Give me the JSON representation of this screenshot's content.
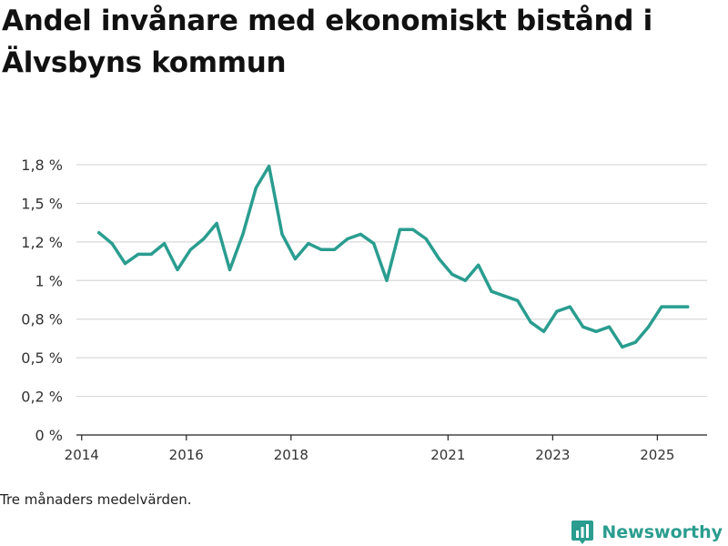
{
  "chart_data": {
    "type": "line",
    "title": "Andel invånare med ekonomiskt bistånd i Älvsbyns kommun",
    "xlabel": "",
    "ylabel": "",
    "ylim": [
      0,
      1.75
    ],
    "xlim": [
      2013.9,
      2025.95
    ],
    "y_ticks": [
      {
        "value": 0,
        "label": "0 %"
      },
      {
        "value": 0.25,
        "label": "0,2 %"
      },
      {
        "value": 0.5,
        "label": "0,5 %"
      },
      {
        "value": 0.75,
        "label": "0,8 %"
      },
      {
        "value": 1.0,
        "label": "1 %"
      },
      {
        "value": 1.25,
        "label": "1,2 %"
      },
      {
        "value": 1.5,
        "label": "1,5 %"
      },
      {
        "value": 1.75,
        "label": "1,8 %"
      }
    ],
    "x_ticks": [
      {
        "value": 2014.0,
        "label": "2014"
      },
      {
        "value": 2016.0,
        "label": "2016"
      },
      {
        "value": 2018.0,
        "label": "2018"
      },
      {
        "value": 2021.0,
        "label": "2021"
      },
      {
        "value": 2023.0,
        "label": "2023"
      },
      {
        "value": 2025.0,
        "label": "2025"
      }
    ],
    "series": [
      {
        "name": "Andel invånare med ekonomiskt bistånd",
        "color": "#2a9d8f",
        "x": [
          2014.33,
          2014.58,
          2014.83,
          2015.08,
          2015.33,
          2015.58,
          2015.83,
          2016.08,
          2016.33,
          2016.58,
          2016.83,
          2017.08,
          2017.33,
          2017.58,
          2017.83,
          2018.08,
          2018.33,
          2018.58,
          2018.83,
          2019.08,
          2019.33,
          2019.58,
          2019.83,
          2020.08,
          2020.33,
          2020.58,
          2020.83,
          2021.08,
          2021.33,
          2021.58,
          2021.83,
          2022.08,
          2022.33,
          2022.58,
          2022.83,
          2023.08,
          2023.33,
          2023.58,
          2023.83,
          2024.08,
          2024.33,
          2024.58,
          2024.83,
          2025.08,
          2025.33,
          2025.58
        ],
        "values": [
          1.31,
          1.24,
          1.11,
          1.17,
          1.17,
          1.24,
          1.07,
          1.2,
          1.27,
          1.37,
          1.07,
          1.3,
          1.6,
          1.74,
          1.3,
          1.14,
          1.24,
          1.2,
          1.2,
          1.27,
          1.3,
          1.24,
          1.0,
          1.33,
          1.33,
          1.27,
          1.14,
          1.04,
          1.0,
          1.1,
          0.93,
          0.9,
          0.87,
          0.73,
          0.67,
          0.8,
          0.83,
          0.7,
          0.67,
          0.7,
          0.57,
          0.6,
          0.7,
          0.83,
          0.83,
          0.83
        ]
      }
    ]
  },
  "footer": {
    "note": "Tre månaders medelvärden.",
    "brand": "Newsworthy"
  },
  "colors": {
    "line": "#2a9d8f",
    "grid": "#d9d9d9",
    "axis": "#222222",
    "brand": "#2a9d8f"
  }
}
